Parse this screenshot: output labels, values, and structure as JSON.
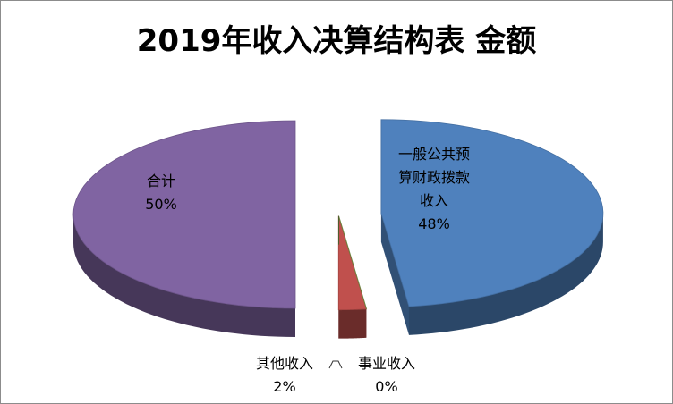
{
  "chart_data": {
    "type": "pie",
    "title": "2019年收入决算结构表 金额",
    "categories": [
      "一般公共预算财政拨款收入",
      "事业收入",
      "其他收入",
      "合计"
    ],
    "values": [
      48,
      0,
      2,
      50
    ],
    "unit": "%",
    "labels": [
      {
        "lines": [
          "一般公共预",
          "算财政拨款",
          "收入"
        ],
        "pct": "48%"
      },
      {
        "lines": [
          "事业收入"
        ],
        "pct": "0%"
      },
      {
        "lines": [
          "其他收入"
        ],
        "pct": "2%"
      },
      {
        "lines": [
          "合计"
        ],
        "pct": "50%"
      }
    ],
    "colors": [
      "#4f81bd",
      "#9bbb59",
      "#c0504d",
      "#8064a2"
    ],
    "three_d": true,
    "exploded": true
  }
}
